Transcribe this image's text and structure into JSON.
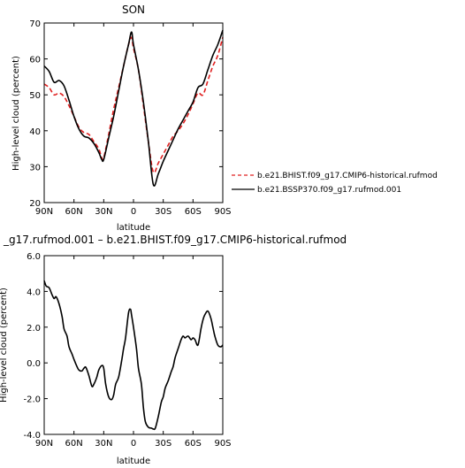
{
  "chart_data": [
    {
      "type": "line",
      "title": "SON",
      "xlabel": "latitude",
      "ylabel": "High-level cloud (percent)",
      "x_ticks": [
        "90N",
        "60N",
        "30N",
        "0",
        "30S",
        "60S",
        "90S"
      ],
      "y_ticks": [
        "20",
        "30",
        "40",
        "50",
        "60",
        "70"
      ],
      "xlim": [
        90,
        -90
      ],
      "ylim": [
        20,
        70
      ],
      "legend_position": "right",
      "series": [
        {
          "name": "b.e21.BHIST.f09_g17.CMIP6-historical.rufmod",
          "color": "#e02020",
          "style": "dashed",
          "x": [
            90,
            85,
            80,
            75,
            70,
            65,
            60,
            55,
            50,
            45,
            40,
            35,
            32,
            30,
            25,
            20,
            15,
            10,
            5,
            2,
            0,
            -5,
            -10,
            -15,
            -20,
            -25,
            -30,
            -35,
            -40,
            -45,
            -50,
            -55,
            -60,
            -65,
            -70,
            -75,
            -80,
            -85,
            -90
          ],
          "values": [
            53,
            52,
            50,
            50.5,
            49.5,
            47,
            44,
            41,
            39.5,
            39,
            37,
            35,
            32.5,
            32.5,
            39,
            46,
            52,
            58,
            64,
            66,
            63,
            57,
            47,
            37,
            28.5,
            31,
            33.5,
            36,
            38.5,
            40,
            42,
            44.5,
            47.5,
            50.5,
            50,
            54,
            58,
            61,
            66
          ]
        },
        {
          "name": "b.e21.BSSP370.f09_g17.rufmod.001",
          "color": "#000000",
          "style": "solid",
          "x": [
            90,
            85,
            80,
            75,
            70,
            65,
            60,
            55,
            50,
            45,
            40,
            35,
            32,
            30,
            25,
            20,
            15,
            10,
            5,
            2,
            0,
            -5,
            -10,
            -15,
            -20,
            -25,
            -30,
            -35,
            -40,
            -45,
            -50,
            -55,
            -60,
            -65,
            -70,
            -75,
            -80,
            -85,
            -90
          ],
          "values": [
            58,
            56.5,
            53.5,
            54,
            52.5,
            48.5,
            44,
            40.5,
            38.5,
            38,
            36.5,
            34,
            32,
            32,
            38,
            44,
            51,
            58,
            64,
            67.5,
            64,
            57,
            48,
            37,
            25,
            28,
            31.5,
            34.5,
            37.5,
            40.5,
            43,
            45.5,
            48,
            52,
            53,
            57,
            61,
            64,
            68
          ]
        }
      ]
    },
    {
      "type": "line",
      "title": "_g17.rufmod.001 – b.e21.BHIST.f09_g17.CMIP6-historical.rufmod",
      "xlabel": "latitude",
      "ylabel": "High-level cloud (percent)",
      "x_ticks": [
        "90N",
        "60N",
        "30N",
        "0",
        "30S",
        "60S",
        "90S"
      ],
      "y_ticks": [
        "-4.0",
        "-2.0",
        "0.0",
        "2.0",
        "4.0",
        "6.0"
      ],
      "xlim": [
        90,
        -90
      ],
      "ylim": [
        -4,
        6
      ],
      "series": [
        {
          "color": "#000000",
          "style": "solid",
          "x": [
            90,
            88,
            85,
            82,
            80,
            78,
            75,
            72,
            70,
            67,
            65,
            62,
            60,
            57,
            55,
            52,
            50,
            48,
            45,
            42,
            40,
            37,
            35,
            32,
            30,
            28,
            25,
            22,
            20,
            18,
            15,
            12,
            10,
            8,
            5,
            3,
            2,
            0,
            -3,
            -5,
            -8,
            -10,
            -12,
            -15,
            -18,
            -20,
            -22,
            -25,
            -28,
            -30,
            -32,
            -35,
            -38,
            -40,
            -42,
            -45,
            -48,
            -50,
            -52,
            -55,
            -58,
            -60,
            -62,
            -65,
            -68,
            -70,
            -72,
            -75,
            -78,
            -80,
            -82,
            -85,
            -88,
            -90
          ],
          "values": [
            4.6,
            4.3,
            4.2,
            3.8,
            3.6,
            3.7,
            3.3,
            2.6,
            1.9,
            1.5,
            0.9,
            0.5,
            0.2,
            -0.2,
            -0.4,
            -0.45,
            -0.3,
            -0.25,
            -0.7,
            -1.3,
            -1.2,
            -0.8,
            -0.4,
            -0.15,
            -0.3,
            -1.2,
            -1.9,
            -2.05,
            -1.8,
            -1.2,
            -0.8,
            0.1,
            0.8,
            1.4,
            2.8,
            3.0,
            2.7,
            2.0,
            0.8,
            -0.3,
            -1.2,
            -2.5,
            -3.3,
            -3.6,
            -3.65,
            -3.7,
            -3.65,
            -3.0,
            -2.2,
            -1.9,
            -1.4,
            -1.0,
            -0.5,
            -0.2,
            0.3,
            0.8,
            1.3,
            1.5,
            1.4,
            1.5,
            1.3,
            1.4,
            1.3,
            1.0,
            1.9,
            2.4,
            2.7,
            2.9,
            2.5,
            2.0,
            1.5,
            1.0,
            0.9,
            1.0
          ]
        }
      ]
    }
  ]
}
